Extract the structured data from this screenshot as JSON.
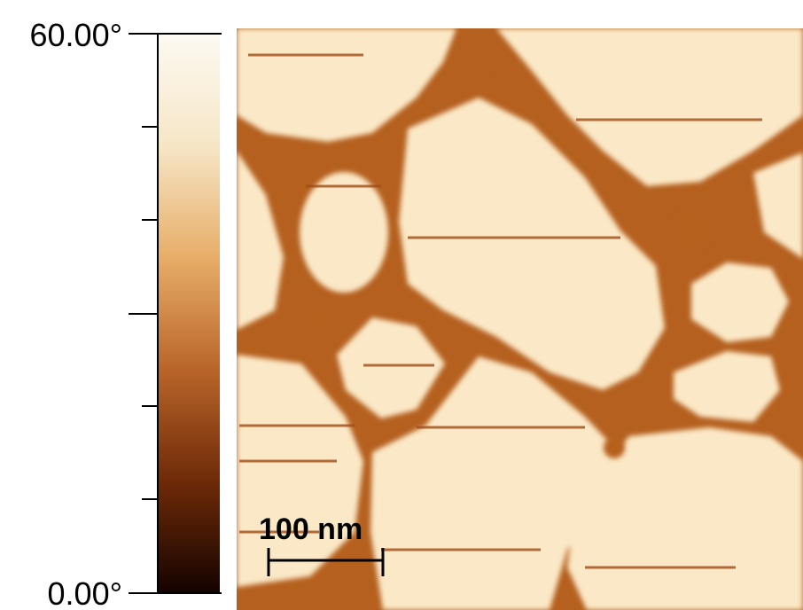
{
  "colorbar": {
    "max_label": "60.00°",
    "min_label": "0.00°"
  },
  "scale_bar": {
    "label": "100 nm"
  }
}
